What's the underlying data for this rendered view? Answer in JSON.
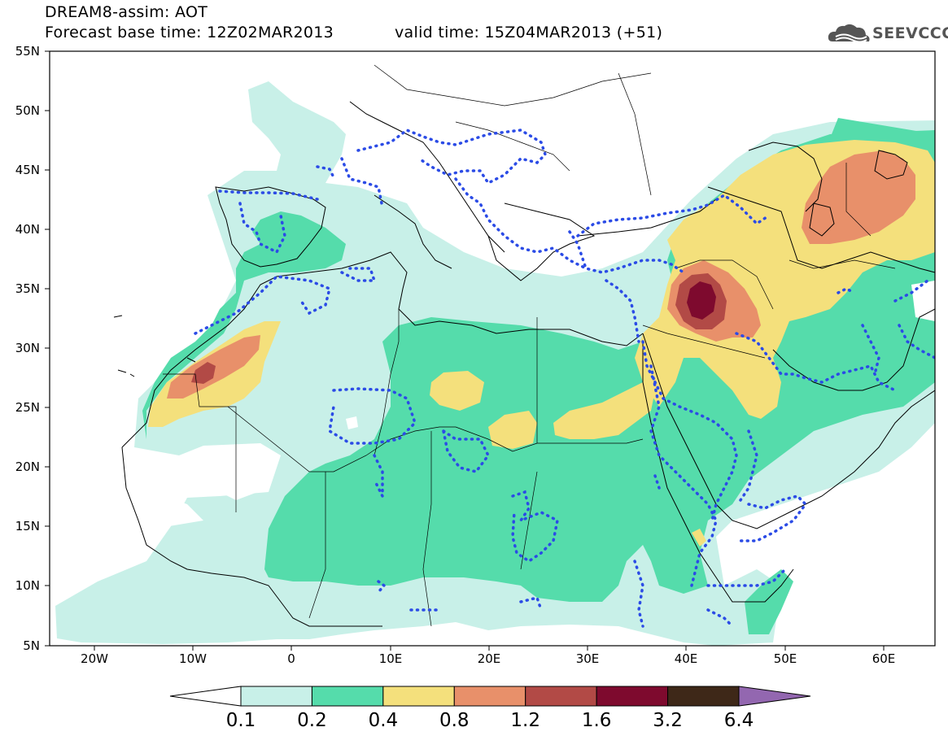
{
  "header": {
    "model_line": "DREAM8-assim: AOT",
    "base_time": "Forecast base time: 12Z02MAR2013",
    "valid_time": "valid time: 15Z04MAR2013 (+51)"
  },
  "brand": {
    "name": "SEEVCCC",
    "logo_icon": "cloud-logo-icon"
  },
  "map": {
    "extent": {
      "lon": [
        -25,
        65
      ],
      "lat": [
        5,
        55
      ]
    },
    "lat_labels": [
      "55N",
      "50N",
      "45N",
      "40N",
      "35N",
      "30N",
      "25N",
      "20N",
      "15N",
      "10N",
      "5N"
    ],
    "lon_labels": [
      "20W",
      "10W",
      "0",
      "10E",
      "20E",
      "30E",
      "40E",
      "50E",
      "60E"
    ],
    "variable": "Aerosol optical thickness",
    "max_region": "Iraq / eastern Syria"
  },
  "legend": {
    "bins": [
      {
        "label": "0.1",
        "color": "#c8f0e8"
      },
      {
        "label": "0.2",
        "color": "#55dcab"
      },
      {
        "label": "0.4",
        "color": "#f4e07c"
      },
      {
        "label": "0.8",
        "color": "#e8906a"
      },
      {
        "label": "1.2",
        "color": "#b24a46"
      },
      {
        "label": "1.6",
        "color": "#7e0a2e"
      },
      {
        "label": "3.2",
        "color": "#3e2818"
      },
      {
        "label": "6.4",
        "color": "#9367b0"
      }
    ],
    "under_color": "#ffffff",
    "over_color": "#9367b0"
  }
}
